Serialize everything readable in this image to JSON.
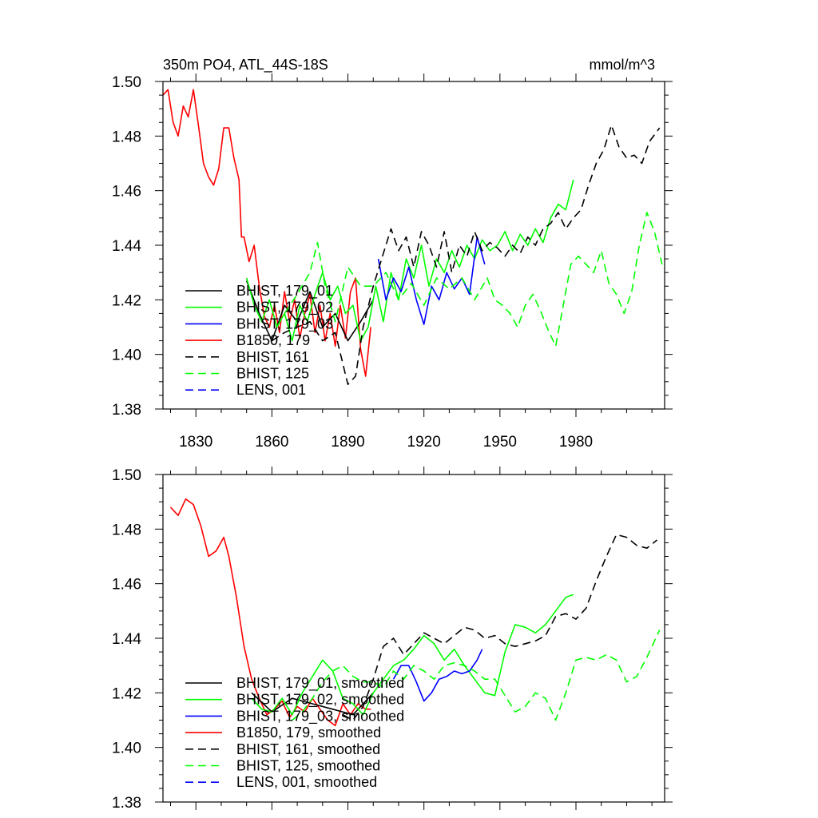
{
  "chart_data": [
    {
      "type": "line",
      "title": "350m PO4, ATL_44S-18S",
      "units": "mmol/m^3",
      "xlim": [
        1817,
        2015
      ],
      "ylim": [
        1.38,
        1.5
      ],
      "xticks": [
        1830,
        1860,
        1890,
        1920,
        1950,
        1980
      ],
      "yticks": [
        1.38,
        1.4,
        1.42,
        1.44,
        1.46,
        1.48,
        1.5
      ],
      "ytick_labels": [
        "1.38",
        "1.40",
        "1.42",
        "1.44",
        "1.46",
        "1.48",
        "1.50"
      ],
      "show_xtick_labels": true,
      "legend_location": "lower-left",
      "legend": [
        {
          "label": "BHIST, 179_01",
          "color": "#000000",
          "dash": "solid"
        },
        {
          "label": "BHIST, 179_02",
          "color": "#00ff00",
          "dash": "solid"
        },
        {
          "label": "BHIST, 179_03",
          "color": "#0000ff",
          "dash": "solid"
        },
        {
          "label": "B1850, 179",
          "color": "#ff0000",
          "dash": "solid"
        },
        {
          "label": "BHIST, 161",
          "color": "#000000",
          "dash": "dashed"
        },
        {
          "label": "BHIST, 125",
          "color": "#00ff00",
          "dash": "dashed"
        },
        {
          "label": "LENS, 001",
          "color": "#0000ff",
          "dash": "dashed"
        }
      ],
      "series": [
        {
          "name": "B1850, 179",
          "color": "#ff0000",
          "dash": "solid",
          "x": [
            1817,
            1819,
            1821,
            1823,
            1825,
            1827,
            1829,
            1831,
            1833,
            1835,
            1837,
            1839,
            1841,
            1843,
            1845,
            1847,
            1848,
            1849,
            1851,
            1853,
            1855,
            1857,
            1859,
            1861,
            1863,
            1865,
            1867,
            1869,
            1871,
            1873,
            1875,
            1877,
            1879,
            1881,
            1883,
            1885,
            1887,
            1889,
            1891,
            1893,
            1895,
            1897,
            1899
          ],
          "y": [
            1.495,
            1.497,
            1.485,
            1.48,
            1.491,
            1.487,
            1.497,
            1.484,
            1.47,
            1.465,
            1.462,
            1.468,
            1.483,
            1.483,
            1.472,
            1.464,
            1.443,
            1.443,
            1.434,
            1.44,
            1.425,
            1.414,
            1.41,
            1.418,
            1.408,
            1.423,
            1.412,
            1.42,
            1.406,
            1.415,
            1.422,
            1.408,
            1.418,
            1.405,
            1.415,
            1.403,
            1.418,
            1.406,
            1.423,
            1.428,
            1.402,
            1.392,
            1.41
          ]
        },
        {
          "name": "BHIST, 179_01",
          "color": "#000000",
          "dash": "solid",
          "x": [
            1850,
            1855,
            1860,
            1865,
            1870,
            1875,
            1880,
            1885,
            1890,
            1895,
            1900
          ],
          "y": [
            1.427,
            1.415,
            1.405,
            1.418,
            1.412,
            1.423,
            1.41,
            1.415,
            1.405,
            1.412,
            1.42
          ]
        },
        {
          "name": "BHIST, 179_02",
          "color": "#00ff00",
          "dash": "solid",
          "x": [
            1850,
            1853,
            1856,
            1859,
            1862,
            1865,
            1868,
            1871,
            1874,
            1877,
            1880,
            1883,
            1886,
            1889,
            1892,
            1895,
            1898,
            1901,
            1904,
            1907,
            1910,
            1913,
            1916,
            1919,
            1922,
            1925,
            1928,
            1931,
            1934,
            1937,
            1940,
            1943,
            1946,
            1949,
            1952,
            1955,
            1958,
            1961,
            1964,
            1967,
            1970,
            1973,
            1976,
            1979
          ],
          "y": [
            1.428,
            1.418,
            1.412,
            1.42,
            1.41,
            1.415,
            1.405,
            1.418,
            1.412,
            1.422,
            1.43,
            1.42,
            1.425,
            1.415,
            1.418,
            1.405,
            1.41,
            1.425,
            1.412,
            1.43,
            1.42,
            1.435,
            1.428,
            1.44,
            1.425,
            1.435,
            1.43,
            1.438,
            1.432,
            1.44,
            1.435,
            1.442,
            1.438,
            1.44,
            1.445,
            1.438,
            1.444,
            1.44,
            1.446,
            1.441,
            1.45,
            1.455,
            1.453,
            1.464
          ]
        },
        {
          "name": "BHIST, 179_03",
          "color": "#0000ff",
          "dash": "solid",
          "x": [
            1902,
            1905,
            1908,
            1911,
            1914,
            1917,
            1920,
            1923,
            1926,
            1929,
            1932,
            1935,
            1938,
            1941,
            1944
          ],
          "y": [
            1.435,
            1.42,
            1.428,
            1.423,
            1.432,
            1.42,
            1.411,
            1.425,
            1.42,
            1.43,
            1.424,
            1.428,
            1.422,
            1.443,
            1.433
          ]
        },
        {
          "name": "BHIST, 161",
          "color": "#000000",
          "dash": "dashed",
          "x": [
            1860,
            1865,
            1870,
            1875,
            1880,
            1885,
            1890,
            1893,
            1896,
            1900,
            1904,
            1907,
            1910,
            1913,
            1916,
            1919,
            1922,
            1925,
            1928,
            1931,
            1934,
            1937,
            1940,
            1943,
            1946,
            1949,
            1952,
            1955,
            1958,
            1961,
            1964,
            1967,
            1970,
            1973,
            1976,
            1979,
            1982,
            1985,
            1988,
            1991,
            1994,
            1997,
            2000,
            2003,
            2006,
            2009,
            2013
          ],
          "y": [
            1.405,
            1.408,
            1.41,
            1.412,
            1.405,
            1.408,
            1.389,
            1.392,
            1.41,
            1.425,
            1.437,
            1.446,
            1.438,
            1.443,
            1.432,
            1.445,
            1.44,
            1.432,
            1.445,
            1.43,
            1.44,
            1.436,
            1.445,
            1.438,
            1.441,
            1.439,
            1.436,
            1.44,
            1.437,
            1.443,
            1.44,
            1.446,
            1.448,
            1.452,
            1.446,
            1.45,
            1.453,
            1.462,
            1.47,
            1.475,
            1.484,
            1.476,
            1.472,
            1.473,
            1.47,
            1.478,
            1.483
          ]
        },
        {
          "name": "BHIST, 125",
          "color": "#00ff00",
          "dash": "dashed",
          "x": [
            1865,
            1870,
            1875,
            1878,
            1881,
            1885,
            1890,
            1895,
            1900,
            1905,
            1910,
            1915,
            1920,
            1925,
            1930,
            1935,
            1940,
            1945,
            1948,
            1951,
            1954,
            1957,
            1960,
            1963,
            1966,
            1969,
            1972,
            1975,
            1978,
            1981,
            1984,
            1987,
            1990,
            1993,
            1996,
            1999,
            2002,
            2005,
            2008,
            2011,
            2014
          ],
          "y": [
            1.415,
            1.422,
            1.43,
            1.441,
            1.425,
            1.412,
            1.432,
            1.425,
            1.425,
            1.43,
            1.42,
            1.426,
            1.418,
            1.428,
            1.424,
            1.428,
            1.42,
            1.428,
            1.42,
            1.418,
            1.415,
            1.41,
            1.418,
            1.422,
            1.416,
            1.409,
            1.403,
            1.418,
            1.433,
            1.436,
            1.433,
            1.43,
            1.438,
            1.426,
            1.422,
            1.415,
            1.423,
            1.44,
            1.452,
            1.445,
            1.433
          ]
        }
      ]
    },
    {
      "type": "line",
      "title": "",
      "units": "",
      "xlim": [
        1817,
        2015
      ],
      "ylim": [
        1.38,
        1.5
      ],
      "xticks": [
        1830,
        1860,
        1890,
        1920,
        1950,
        1980
      ],
      "yticks": [
        1.38,
        1.4,
        1.42,
        1.44,
        1.46,
        1.48,
        1.5
      ],
      "ytick_labels": [
        "1.38",
        "1.40",
        "1.42",
        "1.44",
        "1.46",
        "1.48",
        "1.50"
      ],
      "show_xtick_labels": false,
      "legend_location": "lower-left",
      "legend": [
        {
          "label": "BHIST, 179_01, smoothed",
          "color": "#000000",
          "dash": "solid"
        },
        {
          "label": "BHIST, 179_02, smoothed",
          "color": "#00ff00",
          "dash": "solid"
        },
        {
          "label": "BHIST, 179_03, smoothed",
          "color": "#0000ff",
          "dash": "solid"
        },
        {
          "label": "B1850, 179, smoothed",
          "color": "#ff0000",
          "dash": "solid"
        },
        {
          "label": "BHIST, 161, smoothed",
          "color": "#000000",
          "dash": "dashed"
        },
        {
          "label": "BHIST, 125, smoothed",
          "color": "#00ff00",
          "dash": "dashed"
        },
        {
          "label": "LENS, 001, smoothed",
          "color": "#0000ff",
          "dash": "dashed"
        }
      ],
      "series": [
        {
          "name": "B1850, 179, smoothed",
          "color": "#ff0000",
          "dash": "solid",
          "x": [
            1820,
            1823,
            1826,
            1829,
            1832,
            1835,
            1838,
            1841,
            1843,
            1846,
            1849,
            1852,
            1855,
            1858,
            1861,
            1864,
            1867,
            1870,
            1873,
            1876,
            1879,
            1882,
            1885,
            1888,
            1891,
            1894,
            1897,
            1899
          ],
          "y": [
            1.488,
            1.485,
            1.491,
            1.489,
            1.481,
            1.47,
            1.472,
            1.477,
            1.47,
            1.455,
            1.437,
            1.425,
            1.418,
            1.412,
            1.414,
            1.417,
            1.411,
            1.415,
            1.413,
            1.418,
            1.414,
            1.41,
            1.408,
            1.416,
            1.412,
            1.416,
            1.414,
            1.414
          ]
        },
        {
          "name": "BHIST, 179_01, smoothed",
          "color": "#000000",
          "dash": "solid",
          "x": [
            1852,
            1860,
            1868,
            1876,
            1884,
            1892,
            1900
          ],
          "y": [
            1.42,
            1.413,
            1.418,
            1.416,
            1.414,
            1.412,
            1.42
          ]
        },
        {
          "name": "BHIST, 179_02, smoothed",
          "color": "#00ff00",
          "dash": "solid",
          "x": [
            1852,
            1856,
            1860,
            1864,
            1868,
            1872,
            1876,
            1880,
            1884,
            1888,
            1892,
            1896,
            1900,
            1904,
            1908,
            1912,
            1916,
            1920,
            1924,
            1928,
            1932,
            1936,
            1940,
            1944,
            1948,
            1952,
            1956,
            1960,
            1964,
            1968,
            1972,
            1976,
            1979
          ],
          "y": [
            1.418,
            1.414,
            1.413,
            1.418,
            1.412,
            1.42,
            1.426,
            1.432,
            1.428,
            1.418,
            1.416,
            1.412,
            1.42,
            1.425,
            1.43,
            1.432,
            1.436,
            1.441,
            1.438,
            1.432,
            1.436,
            1.43,
            1.425,
            1.42,
            1.419,
            1.435,
            1.445,
            1.444,
            1.442,
            1.445,
            1.45,
            1.455,
            1.456
          ]
        },
        {
          "name": "BHIST, 179_03, smoothed",
          "color": "#0000ff",
          "dash": "solid",
          "x": [
            1908,
            1911,
            1914,
            1917,
            1920,
            1923,
            1926,
            1929,
            1932,
            1935,
            1938,
            1941,
            1943
          ],
          "y": [
            1.425,
            1.43,
            1.43,
            1.424,
            1.417,
            1.42,
            1.425,
            1.426,
            1.428,
            1.427,
            1.428,
            1.432,
            1.436
          ]
        },
        {
          "name": "BHIST, 161, smoothed",
          "color": "#000000",
          "dash": "dashed",
          "x": [
            1888,
            1892,
            1896,
            1900,
            1904,
            1908,
            1912,
            1916,
            1920,
            1924,
            1928,
            1932,
            1936,
            1940,
            1944,
            1948,
            1952,
            1956,
            1960,
            1964,
            1968,
            1972,
            1976,
            1980,
            1984,
            1988,
            1992,
            1996,
            2000,
            2004,
            2008,
            2012
          ],
          "y": [
            1.412,
            1.41,
            1.415,
            1.425,
            1.437,
            1.44,
            1.434,
            1.438,
            1.442,
            1.44,
            1.438,
            1.441,
            1.444,
            1.443,
            1.44,
            1.441,
            1.438,
            1.437,
            1.438,
            1.439,
            1.441,
            1.448,
            1.449,
            1.447,
            1.451,
            1.461,
            1.47,
            1.478,
            1.477,
            1.474,
            1.473,
            1.476
          ]
        },
        {
          "name": "BHIST, 125, smoothed",
          "color": "#00ff00",
          "dash": "dashed",
          "x": [
            1868,
            1872,
            1876,
            1880,
            1884,
            1888,
            1892,
            1896,
            1900,
            1904,
            1908,
            1912,
            1916,
            1920,
            1924,
            1928,
            1932,
            1936,
            1940,
            1944,
            1948,
            1952,
            1956,
            1960,
            1964,
            1968,
            1972,
            1976,
            1980,
            1984,
            1988,
            1992,
            1996,
            2000,
            2004,
            2008,
            2013
          ],
          "y": [
            1.41,
            1.413,
            1.418,
            1.424,
            1.428,
            1.43,
            1.426,
            1.424,
            1.424,
            1.422,
            1.428,
            1.425,
            1.43,
            1.428,
            1.425,
            1.43,
            1.431,
            1.43,
            1.428,
            1.425,
            1.425,
            1.419,
            1.413,
            1.415,
            1.42,
            1.418,
            1.41,
            1.42,
            1.432,
            1.433,
            1.432,
            1.434,
            1.432,
            1.424,
            1.426,
            1.433,
            1.443
          ]
        }
      ]
    }
  ]
}
